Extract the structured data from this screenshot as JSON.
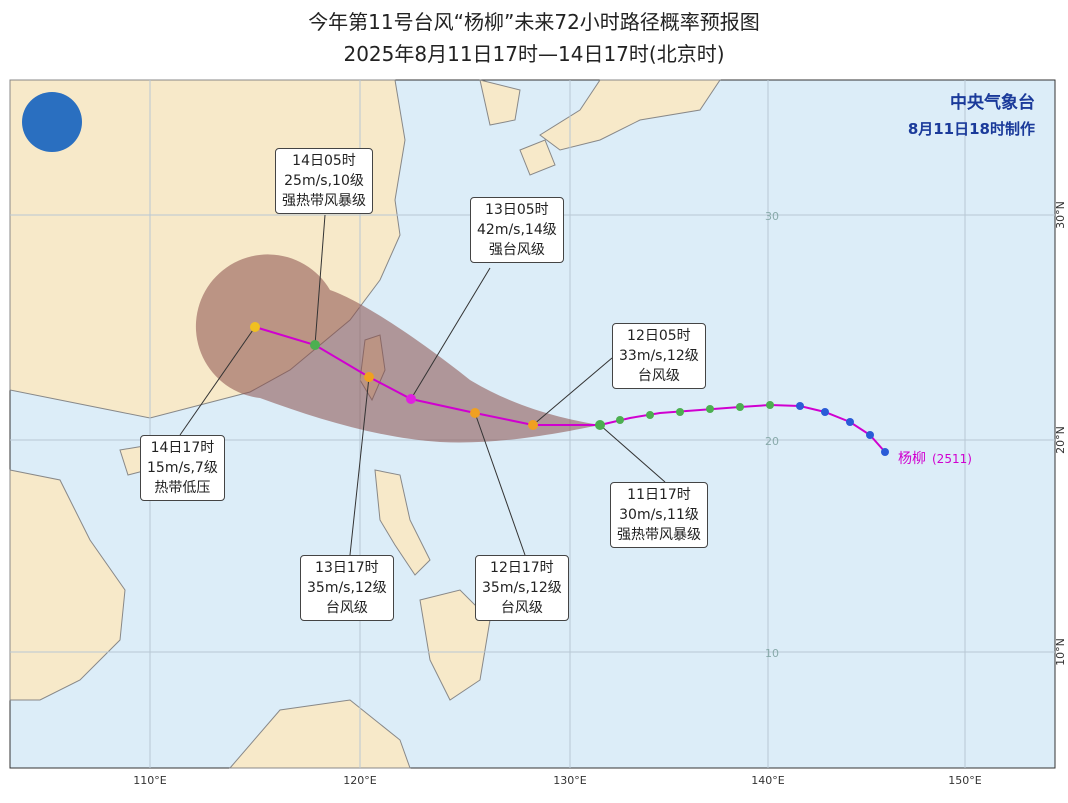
{
  "header": {
    "title": "今年第11号台风“杨柳”未来72小时路径概率预报图",
    "subtitle": "2025年8月11日17时—14日17时(北京时)"
  },
  "agency": {
    "name": "中央气象台",
    "made": "8月11日18时制作"
  },
  "storm": {
    "name": "杨柳",
    "code": "(2511)"
  },
  "forecasts": [
    {
      "time": "11日17时",
      "wind": "30m/s,11级",
      "level": "强热带风暴级"
    },
    {
      "time": "12日05时",
      "wind": "33m/s,12级",
      "level": "台风级"
    },
    {
      "time": "12日17时",
      "wind": "35m/s,12级",
      "level": "台风级"
    },
    {
      "time": "13日05时",
      "wind": "42m/s,14级",
      "level": "强台风级"
    },
    {
      "time": "13日17时",
      "wind": "35m/s,12级",
      "level": "台风级"
    },
    {
      "time": "14日05时",
      "wind": "25m/s,10级",
      "level": "强热带风暴级"
    },
    {
      "time": "14日17时",
      "wind": "15m/s,7级",
      "level": "热带低压"
    }
  ],
  "grid": {
    "lon_labels": [
      "110°E",
      "120°E",
      "130°E",
      "140°E",
      "150°E"
    ],
    "lat_labels": [
      "30°N",
      "20°N",
      "10°N"
    ],
    "inner_labels": [
      "30",
      "20",
      "10"
    ]
  }
}
